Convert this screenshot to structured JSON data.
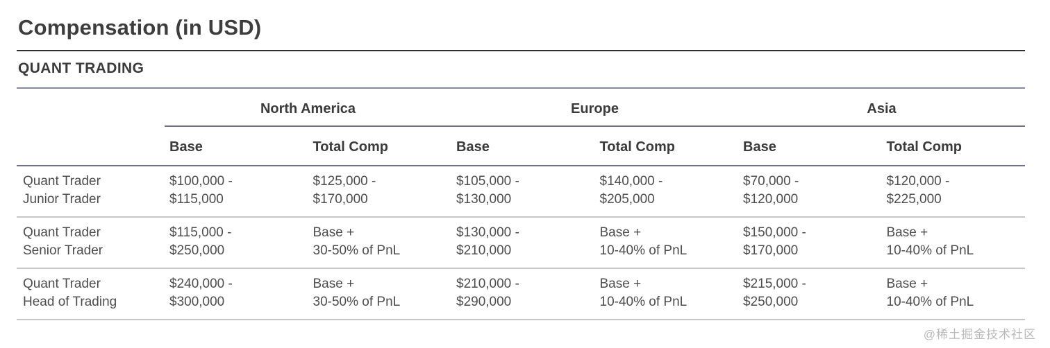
{
  "page": {
    "title": "Compensation (in USD)",
    "section": "QUANT TRADING"
  },
  "table": {
    "regions": [
      {
        "label": "North America"
      },
      {
        "label": "Europe"
      },
      {
        "label": "Asia"
      }
    ],
    "subheaders": {
      "base": "Base",
      "total_comp": "Total Comp"
    },
    "rows": [
      {
        "role": {
          "line1": "Quant Trader",
          "line2": "Junior Trader"
        },
        "cells": [
          {
            "line1": "$100,000 -",
            "line2": "$115,000"
          },
          {
            "line1": "$125,000 -",
            "line2": "$170,000"
          },
          {
            "line1": "$105,000 -",
            "line2": "$130,000"
          },
          {
            "line1": "$140,000 -",
            "line2": "$205,000"
          },
          {
            "line1": "$70,000 -",
            "line2": "$120,000"
          },
          {
            "line1": "$120,000 -",
            "line2": "$225,000"
          }
        ]
      },
      {
        "role": {
          "line1": "Quant Trader",
          "line2": "Senior Trader"
        },
        "cells": [
          {
            "line1": "$115,000 -",
            "line2": "$250,000"
          },
          {
            "line1": "Base +",
            "line2": "30-50% of PnL"
          },
          {
            "line1": "$130,000 -",
            "line2": "$210,000"
          },
          {
            "line1": "Base +",
            "line2": "10-40% of PnL"
          },
          {
            "line1": "$150,000 -",
            "line2": "$170,000"
          },
          {
            "line1": "Base +",
            "line2": "10-40% of PnL"
          }
        ]
      },
      {
        "role": {
          "line1": "Quant Trader",
          "line2": "Head of Trading"
        },
        "cells": [
          {
            "line1": "$240,000 -",
            "line2": "$300,000"
          },
          {
            "line1": "Base +",
            "line2": "30-50% of PnL"
          },
          {
            "line1": "$210,000 -",
            "line2": "$290,000"
          },
          {
            "line1": "Base +",
            "line2": "10-40% of PnL"
          },
          {
            "line1": "$215,000 -",
            "line2": "$250,000"
          },
          {
            "line1": "Base +",
            "line2": "10-40% of PnL"
          }
        ]
      }
    ]
  },
  "watermark": "@稀土掘金技术社区"
}
